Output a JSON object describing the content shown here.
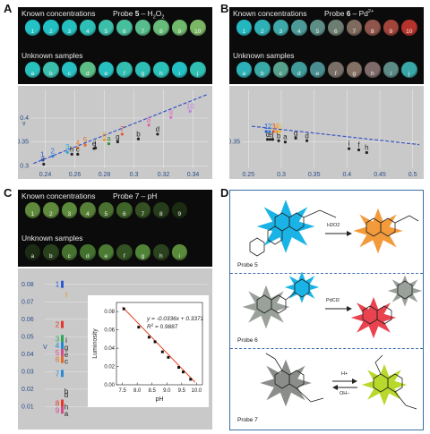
{
  "panels": {
    "A": {
      "letter": "A",
      "known_label": "Known concentrations",
      "title_prefix": "Probe ",
      "title_num": "5",
      "title_suffix": " – H",
      "title_sub": "2",
      "title_end": "O",
      "title_sub2": "2",
      "unknown_label": "Unknown samples",
      "known_wells": [
        "1",
        "2",
        "3",
        "4",
        "5",
        "6",
        "7",
        "8",
        "9",
        "10"
      ],
      "unknown_wells": [
        "a",
        "b",
        "c",
        "d",
        "e",
        "f",
        "g",
        "h",
        "i",
        "j"
      ],
      "known_colors": [
        "#23c2c6",
        "#21c0c2",
        "#23bfbe",
        "#2dbfb6",
        "#3bbfaa",
        "#48bf9c",
        "#57bd8c",
        "#66bb79",
        "#70b86c",
        "#7ab664"
      ],
      "unknown_colors": [
        "#28c0bd",
        "#3abfac",
        "#26c0c2",
        "#5cbd85",
        "#27bfc0",
        "#32bfb2",
        "#2dbfb6",
        "#2bc0b8",
        "#22c0c4",
        "#2fc0b3"
      ],
      "x_ticks": [
        "0.24",
        "0.26",
        "0.28",
        "0.3",
        "0.32",
        "0.34"
      ],
      "y_ticks": [
        "0.3",
        "0.35",
        "0.4"
      ],
      "y_label": "v",
      "chart_data": {
        "type": "scatter",
        "x_range": [
          0.23,
          0.35
        ],
        "y_range": [
          0.295,
          0.46
        ],
        "fit": [
          [
            0.232,
            0.305
          ],
          [
            0.35,
            0.45
          ]
        ],
        "points": [
          {
            "label": "1",
            "x": 0.238,
            "y": 0.318,
            "color": "#2a5cd6"
          },
          {
            "label": "2",
            "x": 0.245,
            "y": 0.326,
            "color": "#2a7fd6"
          },
          {
            "label": "3",
            "x": 0.255,
            "y": 0.334,
            "color": "#23a8d0"
          },
          {
            "label": "4",
            "x": 0.262,
            "y": 0.343,
            "color": "#f07a28"
          },
          {
            "label": "5",
            "x": 0.267,
            "y": 0.349,
            "color": "#e66b2a"
          },
          {
            "label": "6",
            "x": 0.28,
            "y": 0.36,
            "color": "#f09a2a"
          },
          {
            "label": "7",
            "x": 0.292,
            "y": 0.372,
            "color": "#e6552a"
          },
          {
            "label": "8",
            "x": 0.31,
            "y": 0.391,
            "color": "#e060a0"
          },
          {
            "label": "9",
            "x": 0.325,
            "y": 0.407,
            "color": "#d870c8"
          },
          {
            "label": "10",
            "x": 0.338,
            "y": 0.42,
            "color": "#c080e0"
          },
          {
            "label": "a",
            "x": 0.283,
            "y": 0.352,
            "color": "#3a8a3a"
          },
          {
            "label": "b",
            "x": 0.303,
            "y": 0.362,
            "color": "#222222"
          },
          {
            "label": "c",
            "x": 0.262,
            "y": 0.33,
            "color": "#222222"
          },
          {
            "label": "d",
            "x": 0.316,
            "y": 0.372,
            "color": "#222222"
          },
          {
            "label": "e",
            "x": 0.273,
            "y": 0.342,
            "color": "#222222"
          },
          {
            "label": "g",
            "x": 0.289,
            "y": 0.356,
            "color": "#222222"
          },
          {
            "label": "h",
            "x": 0.258,
            "y": 0.33,
            "color": "#222222"
          },
          {
            "label": "i",
            "x": 0.239,
            "y": 0.309,
            "color": "#222222"
          },
          {
            "label": "j",
            "x": 0.274,
            "y": 0.343,
            "color": "#222222"
          }
        ]
      }
    },
    "B": {
      "letter": "B",
      "known_label": "Known concentrations",
      "title_prefix": "Probe ",
      "title_num": "6",
      "title_suffix": " – Pd",
      "title_sup": "2+",
      "unknown_label": "Unknown samples",
      "known_wells": [
        "1",
        "2",
        "3",
        "4",
        "5",
        "6",
        "7",
        "8",
        "9",
        "10"
      ],
      "unknown_wells": [
        "a",
        "b",
        "c",
        "d",
        "e",
        "f",
        "g",
        "h",
        "i",
        "j"
      ],
      "known_colors": [
        "#24b7c0",
        "#2eb1b6",
        "#3ca8a8",
        "#4c9b98",
        "#5c8e86",
        "#6c7d72",
        "#7f6a5e",
        "#8f554a",
        "#a3443a",
        "#b5332a"
      ],
      "unknown_colors": [
        "#2bb1b7",
        "#39a9a8",
        "#57a08b",
        "#3f9c9b",
        "#4a8e91",
        "#7a6f68",
        "#847063",
        "#7f6a6a",
        "#5e8a86",
        "#39a6a7"
      ],
      "x_ticks": [
        "0.25",
        "0.3",
        "0.35",
        "0.4",
        "0.45",
        "0.5"
      ],
      "y_ticks": [
        "0.35"
      ],
      "chart_data": {
        "type": "scatter",
        "x_range": [
          0.24,
          0.51
        ],
        "y_range": [
          0.33,
          0.39
        ],
        "fit": [
          [
            0.255,
            0.362
          ],
          [
            0.51,
            0.348
          ]
        ],
        "points": [
          {
            "label": "1",
            "x": 0.277,
            "y": 0.36,
            "color": "#2a5cd6"
          },
          {
            "label": "2",
            "x": 0.282,
            "y": 0.36,
            "color": "#2a7fd6"
          },
          {
            "label": "3",
            "x": 0.288,
            "y": 0.36,
            "color": "#e6552a"
          },
          {
            "label": "4",
            "x": 0.293,
            "y": 0.36,
            "color": "#f09a2a"
          },
          {
            "label": "5",
            "x": 0.298,
            "y": 0.36,
            "color": "#f0b82a"
          },
          {
            "label": "c",
            "x": 0.279,
            "y": 0.354,
            "color": "#222222"
          },
          {
            "label": "e",
            "x": 0.283,
            "y": 0.354,
            "color": "#222222"
          },
          {
            "label": "j",
            "x": 0.287,
            "y": 0.354,
            "color": "#222222"
          },
          {
            "label": "b",
            "x": 0.296,
            "y": 0.353,
            "color": "#222222"
          },
          {
            "label": "a",
            "x": 0.306,
            "y": 0.352,
            "color": "#222222"
          },
          {
            "label": "g",
            "x": 0.322,
            "y": 0.355,
            "color": "#222222"
          },
          {
            "label": "d",
            "x": 0.339,
            "y": 0.353,
            "color": "#222222"
          },
          {
            "label": "i",
            "x": 0.403,
            "y": 0.347,
            "color": "#222222"
          },
          {
            "label": "f",
            "x": 0.418,
            "y": 0.346,
            "color": "#222222"
          },
          {
            "label": "h",
            "x": 0.43,
            "y": 0.344,
            "color": "#222222"
          }
        ]
      }
    },
    "C": {
      "letter": "C",
      "known_label": "Known concentrations",
      "title": "Probe 7 – pH",
      "unknown_label": "Unknown samples",
      "known_wells": [
        "1",
        "2",
        "3",
        "4",
        "5",
        "6",
        "7",
        "8",
        "9"
      ],
      "unknown_wells": [
        "a",
        "b",
        "c",
        "d",
        "e",
        "f",
        "g",
        "h",
        "i"
      ],
      "known_colors": [
        "#5f8a3c",
        "#5f8a3c",
        "#5c8a3b",
        "#587f38",
        "#4a7030",
        "#3f6429",
        "#344f22",
        "#263c1a",
        "#1c2c13"
      ],
      "unknown_colors": [
        "#1d2c14",
        "#28401c",
        "#46722f",
        "#43702d",
        "#4b7a33",
        "#335222",
        "#4f8335",
        "#2a421d",
        "#5a8b3a"
      ],
      "y_ticks": [
        "0.01",
        "0.02",
        "0.03",
        "0.04",
        "0.05",
        "0.06",
        "0.07",
        "0.08"
      ],
      "y_label": "V",
      "strip_labels": [
        {
          "t": "1",
          "y": 0.079,
          "c": "#2a5cd6"
        },
        {
          "t": "f",
          "y": 0.073,
          "c": "#e69a2a"
        },
        {
          "t": "2",
          "y": 0.056,
          "c": "#e6352a"
        },
        {
          "t": "3",
          "y": 0.048,
          "c": "#2aa85a"
        },
        {
          "t": "i",
          "y": 0.047,
          "c": "#222"
        },
        {
          "t": "4",
          "y": 0.044,
          "c": "#1d8ad6"
        },
        {
          "t": "g",
          "y": 0.043,
          "c": "#222"
        },
        {
          "t": "5",
          "y": 0.04,
          "c": "#d64a8a"
        },
        {
          "t": "e",
          "y": 0.039,
          "c": "#222"
        },
        {
          "t": "6",
          "y": 0.036,
          "c": "#e06a2a"
        },
        {
          "t": "c",
          "y": 0.035,
          "c": "#222"
        },
        {
          "t": "7",
          "y": 0.028,
          "c": "#2a8ad6"
        },
        {
          "t": "b",
          "y": 0.018,
          "c": "#222"
        },
        {
          "t": "d",
          "y": 0.016,
          "c": "#222"
        },
        {
          "t": "8",
          "y": 0.011,
          "c": "#e6352a"
        },
        {
          "t": "h",
          "y": 0.009,
          "c": "#222"
        },
        {
          "t": "9",
          "y": 0.007,
          "c": "#d64a8a"
        },
        {
          "t": "a",
          "y": 0.005,
          "c": "#222"
        }
      ],
      "chart_data": {
        "type": "scatter",
        "title": "",
        "xlabel": "pH",
        "ylabel": "Luminosity",
        "x_ticks": [
          "7.5",
          "8.0",
          "8.5",
          "9.0",
          "9.5",
          "10.0"
        ],
        "y_ticks": [
          "0.00",
          "0.02",
          "0.04",
          "0.06",
          "0.08"
        ],
        "xlim": [
          7.3,
          10.2
        ],
        "ylim": [
          0.0,
          0.09
        ],
        "points": [
          [
            7.55,
            0.083
          ],
          [
            8.05,
            0.063
          ],
          [
            8.4,
            0.052
          ],
          [
            8.6,
            0.047
          ],
          [
            8.85,
            0.036
          ],
          [
            9.05,
            0.03
          ],
          [
            9.4,
            0.019
          ],
          [
            9.55,
            0.014
          ],
          [
            9.8,
            0.006
          ]
        ],
        "fit": [
          [
            7.5,
            0.0851
          ],
          [
            9.95,
            0.0028
          ]
        ],
        "equation": "y = -0.0336x + 0.3371",
        "r2_prefix": "R",
        "r2_value": " = 0.9887"
      }
    },
    "D": {
      "letter": "D",
      "probe_labels": [
        "Probe 5",
        "Probe 6",
        "Probe 7"
      ],
      "reagent_1": "H2O2",
      "reagent_2": "PdCl2",
      "reagent_3_top": "H+",
      "reagent_3_bottom": "OH−"
    }
  }
}
